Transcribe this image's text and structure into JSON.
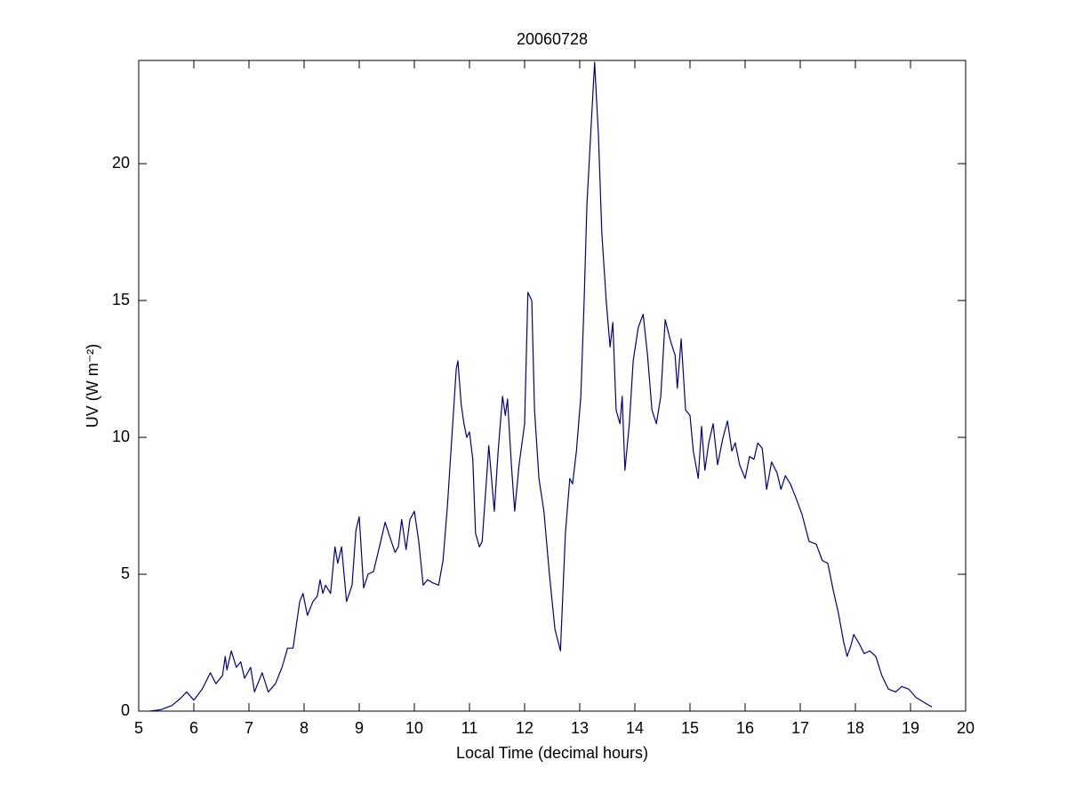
{
  "chart_data": {
    "type": "line",
    "title": "20060728",
    "xlabel": "Local Time (decimal hours)",
    "ylabel": "UV (W m⁻²)",
    "x": [
      5.2,
      5.4,
      5.6,
      5.75,
      5.87,
      6.0,
      6.15,
      6.3,
      6.4,
      6.52,
      6.57,
      6.6,
      6.68,
      6.77,
      6.85,
      6.92,
      7.03,
      7.1,
      7.24,
      7.35,
      7.48,
      7.6,
      7.7,
      7.8,
      7.92,
      7.98,
      8.06,
      8.16,
      8.24,
      8.29,
      8.34,
      8.39,
      8.48,
      8.56,
      8.61,
      8.68,
      8.77,
      8.87,
      8.94,
      9.0,
      9.08,
      9.16,
      9.26,
      9.39,
      9.47,
      9.55,
      9.65,
      9.71,
      9.77,
      9.85,
      9.92,
      10.0,
      10.08,
      10.16,
      10.24,
      10.32,
      10.44,
      10.52,
      10.6,
      10.68,
      10.76,
      10.79,
      10.85,
      10.9,
      10.95,
      11.0,
      11.06,
      11.11,
      11.18,
      11.23,
      11.31,
      11.35,
      11.45,
      11.52,
      11.6,
      11.65,
      11.69,
      11.76,
      11.82,
      11.9,
      12.0,
      12.06,
      12.13,
      12.18,
      12.26,
      12.35,
      12.45,
      12.55,
      12.65,
      12.74,
      12.82,
      12.87,
      12.94,
      13.02,
      13.08,
      13.13,
      13.21,
      13.27,
      13.34,
      13.4,
      13.48,
      13.55,
      13.6,
      13.66,
      13.73,
      13.77,
      13.82,
      13.9,
      13.97,
      14.06,
      14.15,
      14.23,
      14.31,
      14.39,
      14.47,
      14.55,
      14.65,
      14.73,
      14.77,
      14.84,
      14.92,
      15.0,
      15.06,
      15.15,
      15.21,
      15.27,
      15.34,
      15.42,
      15.5,
      15.6,
      15.68,
      15.76,
      15.82,
      15.9,
      16.0,
      16.08,
      16.16,
      16.23,
      16.31,
      16.39,
      16.48,
      16.58,
      16.65,
      16.73,
      16.82,
      16.92,
      17.03,
      17.16,
      17.29,
      17.4,
      17.5,
      17.6,
      17.69,
      17.79,
      17.85,
      17.92,
      17.97,
      18.06,
      18.16,
      18.26,
      18.37,
      18.48,
      18.6,
      18.73,
      18.84,
      18.97,
      19.1,
      19.26,
      19.39
    ],
    "values": [
      0,
      0.05,
      0.2,
      0.45,
      0.7,
      0.4,
      0.8,
      1.4,
      1.0,
      1.3,
      2.0,
      1.5,
      2.2,
      1.6,
      1.8,
      1.2,
      1.6,
      0.7,
      1.4,
      0.7,
      1.0,
      1.6,
      2.3,
      2.3,
      4.0,
      4.3,
      3.5,
      4.0,
      4.2,
      4.8,
      4.3,
      4.6,
      4.3,
      6.0,
      5.4,
      6.0,
      4.0,
      4.6,
      6.6,
      7.1,
      4.5,
      5.0,
      5.1,
      6.2,
      6.9,
      6.4,
      5.8,
      6.0,
      7.0,
      5.9,
      7.0,
      7.3,
      6.2,
      4.6,
      4.8,
      4.7,
      4.6,
      5.5,
      7.5,
      10.0,
      12.5,
      12.8,
      11.2,
      10.5,
      10.0,
      10.2,
      9.2,
      6.5,
      6.0,
      6.2,
      8.5,
      9.7,
      7.3,
      9.5,
      11.5,
      10.8,
      11.4,
      9.0,
      7.3,
      9.0,
      10.5,
      15.3,
      15.0,
      11.0,
      8.5,
      7.3,
      5.0,
      3.0,
      2.2,
      6.5,
      8.5,
      8.3,
      9.5,
      11.5,
      15.0,
      18.5,
      21.5,
      23.7,
      21.0,
      17.5,
      15.0,
      13.3,
      14.2,
      11.0,
      10.5,
      11.5,
      8.8,
      10.5,
      12.8,
      14.0,
      14.5,
      13.0,
      11.0,
      10.5,
      11.5,
      14.3,
      13.5,
      13.0,
      11.8,
      13.6,
      11.0,
      10.8,
      9.5,
      8.5,
      10.4,
      8.8,
      9.8,
      10.5,
      9.0,
      10.0,
      10.6,
      9.5,
      9.8,
      9.0,
      8.5,
      9.3,
      9.2,
      9.8,
      9.6,
      8.1,
      9.1,
      8.7,
      8.1,
      8.6,
      8.3,
      7.8,
      7.2,
      6.2,
      6.1,
      5.5,
      5.4,
      4.4,
      3.6,
      2.5,
      2.0,
      2.4,
      2.8,
      2.5,
      2.1,
      2.2,
      2.0,
      1.3,
      0.8,
      0.7,
      0.9,
      0.8,
      0.5,
      0.3,
      0.15
    ],
    "color": "#000080",
    "xlim": [
      5,
      20
    ],
    "xticks": [
      5,
      6,
      7,
      8,
      9,
      10,
      11,
      12,
      13,
      14,
      15,
      16,
      17,
      18,
      19,
      20
    ],
    "ylim": [
      0,
      23.77
    ],
    "yticks": [
      0,
      5,
      10,
      15,
      20
    ]
  }
}
